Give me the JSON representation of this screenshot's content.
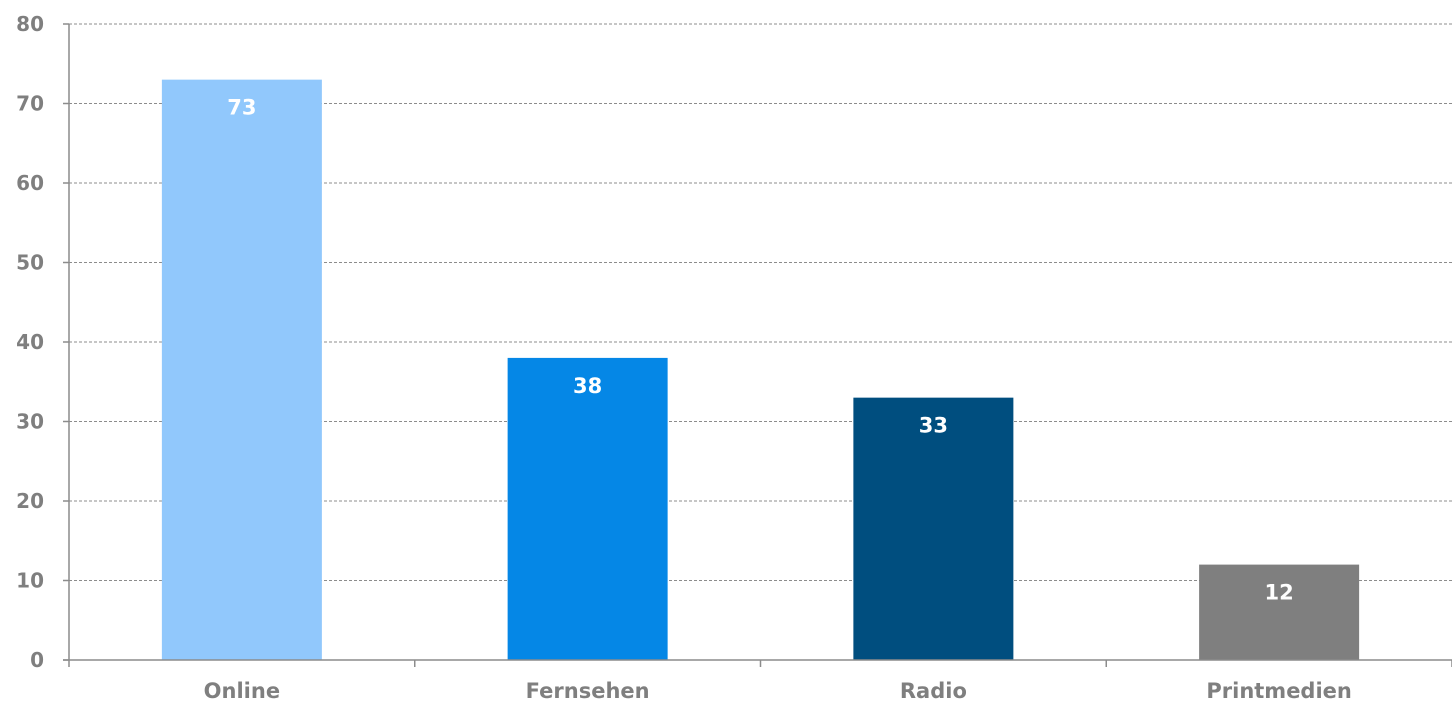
{
  "chart_data": {
    "type": "bar",
    "title": "",
    "xlabel": "",
    "ylabel": "",
    "categories": [
      "Online",
      "Fernsehen",
      "Radio",
      "Printmedien"
    ],
    "values": [
      73,
      38,
      33,
      12
    ],
    "data_labels": [
      "73",
      "38",
      "33",
      "12"
    ],
    "bar_colors": [
      "#91c8fc",
      "#0587e6",
      "#004e7f",
      "#7f7f7f"
    ],
    "ylim": [
      0,
      80
    ],
    "yticks": [
      0,
      10,
      20,
      30,
      40,
      50,
      60,
      70,
      80
    ],
    "ytick_labels": [
      "0",
      "10",
      "20",
      "30",
      "40",
      "50",
      "60",
      "70",
      "80"
    ],
    "grid": true,
    "legend": "none"
  }
}
